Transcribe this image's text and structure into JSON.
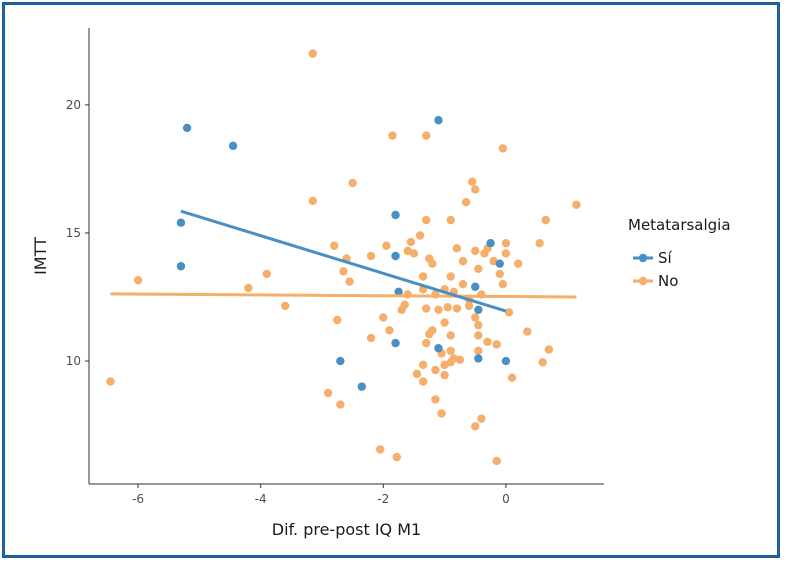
{
  "chart_data": {
    "type": "scatter",
    "title": "",
    "xlabel": "Dif. pre-post IQ M1",
    "ylabel": "IMTT",
    "xlim": [
      -6.8,
      1.6
    ],
    "ylim": [
      5.2,
      23
    ],
    "xticks": [
      -6,
      -4,
      -2,
      0
    ],
    "xtick_labels": [
      "-6",
      "-4",
      "-2",
      "0"
    ],
    "yticks": [
      10,
      15,
      20
    ],
    "ytick_labels": [
      "10",
      "15",
      "20"
    ],
    "grid": false,
    "legend": {
      "title": "Metatarsalgia",
      "position": "right"
    },
    "series": [
      {
        "name": "Sí",
        "color": "#4a8fc4",
        "points": [
          [
            -5.2,
            19.1
          ],
          [
            -4.45,
            18.4
          ],
          [
            -5.3,
            15.4
          ],
          [
            -5.3,
            13.7
          ],
          [
            -1.8,
            15.7
          ],
          [
            -1.8,
            14.1
          ],
          [
            -1.75,
            12.7
          ],
          [
            -1.8,
            10.7
          ],
          [
            -2.7,
            10.0
          ],
          [
            -2.35,
            9.0
          ],
          [
            -1.1,
            19.4
          ],
          [
            -1.1,
            10.5
          ],
          [
            -0.25,
            14.6
          ],
          [
            -0.1,
            13.8
          ],
          [
            -0.5,
            12.9
          ],
          [
            -0.45,
            12.0
          ],
          [
            -0.45,
            10.1
          ],
          [
            0.0,
            10.0
          ]
        ],
        "fit": [
          [
            -5.3,
            15.85
          ],
          [
            0.0,
            11.95
          ]
        ]
      },
      {
        "name": "No",
        "color": "#f5ae6b",
        "points": [
          [
            -3.15,
            22.0
          ],
          [
            -1.85,
            18.8
          ],
          [
            -1.3,
            18.8
          ],
          [
            -0.05,
            18.3
          ],
          [
            -2.5,
            16.95
          ],
          [
            -0.55,
            17.0
          ],
          [
            -0.5,
            16.7
          ],
          [
            -3.15,
            16.25
          ],
          [
            1.15,
            16.1
          ],
          [
            0.65,
            15.5
          ],
          [
            -1.3,
            15.5
          ],
          [
            -0.9,
            15.5
          ],
          [
            -0.65,
            16.2
          ],
          [
            0.55,
            14.6
          ],
          [
            -2.8,
            14.5
          ],
          [
            -1.95,
            14.5
          ],
          [
            -1.6,
            14.3
          ],
          [
            -1.5,
            14.2
          ],
          [
            -1.4,
            14.9
          ],
          [
            -1.55,
            14.65
          ],
          [
            -1.25,
            14.0
          ],
          [
            -1.2,
            13.8
          ],
          [
            -0.8,
            14.4
          ],
          [
            -0.7,
            13.9
          ],
          [
            -0.5,
            14.3
          ],
          [
            -0.35,
            14.2
          ],
          [
            -0.3,
            14.4
          ],
          [
            -0.2,
            13.9
          ],
          [
            0.0,
            14.6
          ],
          [
            0.0,
            14.2
          ],
          [
            0.2,
            13.8
          ],
          [
            -2.6,
            14.0
          ],
          [
            -2.2,
            14.1
          ],
          [
            -2.65,
            13.5
          ],
          [
            -2.55,
            13.1
          ],
          [
            -1.35,
            13.3
          ],
          [
            -0.9,
            13.3
          ],
          [
            -0.7,
            13.0
          ],
          [
            -0.45,
            13.6
          ],
          [
            -0.1,
            13.4
          ],
          [
            -0.05,
            13.0
          ],
          [
            -3.9,
            13.4
          ],
          [
            -6.0,
            13.15
          ],
          [
            -4.2,
            12.85
          ],
          [
            -3.6,
            12.15
          ],
          [
            -1.6,
            12.6
          ],
          [
            -1.35,
            12.8
          ],
          [
            -1.15,
            12.6
          ],
          [
            -1.0,
            12.8
          ],
          [
            -0.85,
            12.7
          ],
          [
            -0.6,
            12.4
          ],
          [
            -0.4,
            12.6
          ],
          [
            -1.65,
            12.2
          ],
          [
            -1.7,
            12.0
          ],
          [
            -1.3,
            12.05
          ],
          [
            -1.1,
            12.0
          ],
          [
            -0.95,
            12.1
          ],
          [
            -0.8,
            12.05
          ],
          [
            -0.6,
            12.15
          ],
          [
            -0.5,
            11.7
          ],
          [
            0.05,
            11.9
          ],
          [
            -2.75,
            11.6
          ],
          [
            -2.0,
            11.7
          ],
          [
            -1.9,
            11.2
          ],
          [
            -1.25,
            11.05
          ],
          [
            -1.2,
            11.2
          ],
          [
            -1.0,
            11.5
          ],
          [
            -0.9,
            11.0
          ],
          [
            -0.45,
            11.4
          ],
          [
            -0.45,
            11.0
          ],
          [
            0.35,
            11.15
          ],
          [
            -2.2,
            10.9
          ],
          [
            -1.3,
            10.7
          ],
          [
            -0.9,
            10.4
          ],
          [
            -0.3,
            10.75
          ],
          [
            -0.15,
            10.65
          ],
          [
            -1.05,
            10.3
          ],
          [
            -0.85,
            10.1
          ],
          [
            -0.75,
            10.05
          ],
          [
            -0.45,
            10.4
          ],
          [
            -1.0,
            9.85
          ],
          [
            -0.9,
            9.95
          ],
          [
            -1.35,
            9.85
          ],
          [
            -1.15,
            9.65
          ],
          [
            0.6,
            9.95
          ],
          [
            0.7,
            10.45
          ],
          [
            -1.45,
            9.5
          ],
          [
            -1.35,
            9.2
          ],
          [
            -1.0,
            9.45
          ],
          [
            0.1,
            9.35
          ],
          [
            -6.45,
            9.2
          ],
          [
            -2.9,
            8.75
          ],
          [
            -2.7,
            8.3
          ],
          [
            -1.15,
            8.5
          ],
          [
            -1.05,
            7.95
          ],
          [
            -0.4,
            7.75
          ],
          [
            -0.5,
            7.45
          ],
          [
            -2.05,
            6.55
          ],
          [
            -1.78,
            6.25
          ],
          [
            -0.15,
            6.1
          ]
        ],
        "fit": [
          [
            -6.45,
            12.62
          ],
          [
            1.15,
            12.5
          ]
        ]
      }
    ]
  }
}
